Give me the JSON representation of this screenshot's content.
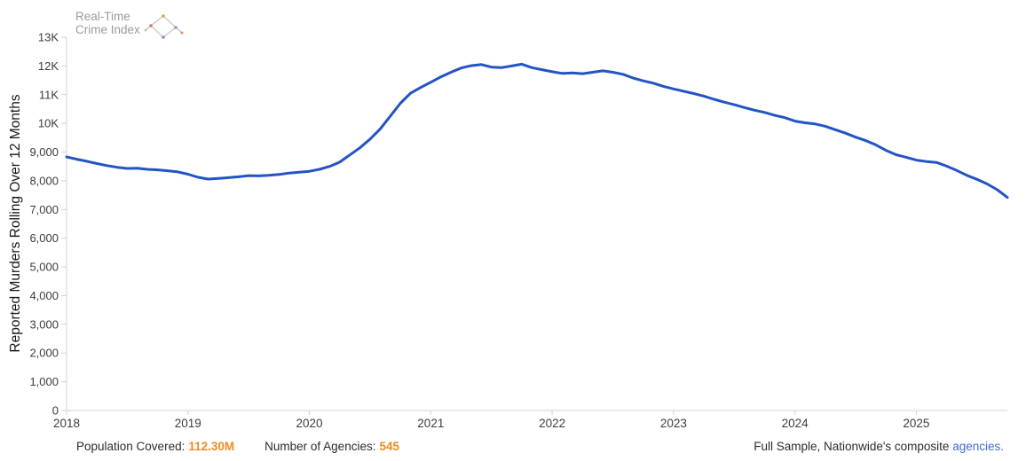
{
  "logo": {
    "line1": "Real-Time",
    "line2": "Crime Index"
  },
  "chart_data": {
    "type": "line",
    "title": "",
    "xlabel": "",
    "ylabel": "Reported Murders Rolling Over 12 Months",
    "ylim": [
      0,
      13000
    ],
    "grid": false,
    "legend_position": "none",
    "line_color": "#2453c6",
    "axis_line_color": "#d2d2d2",
    "y_ticks": [
      {
        "value": 0,
        "label": "0"
      },
      {
        "value": 1000,
        "label": "1,000"
      },
      {
        "value": 2000,
        "label": "2,000"
      },
      {
        "value": 3000,
        "label": "3,000"
      },
      {
        "value": 4000,
        "label": "4,000"
      },
      {
        "value": 5000,
        "label": "5,000"
      },
      {
        "value": 6000,
        "label": "6,000"
      },
      {
        "value": 7000,
        "label": "7,000"
      },
      {
        "value": 8000,
        "label": "8,000"
      },
      {
        "value": 9000,
        "label": "9,000"
      },
      {
        "value": 10000,
        "label": "10K"
      },
      {
        "value": 11000,
        "label": "11K"
      },
      {
        "value": 12000,
        "label": "12K"
      },
      {
        "value": 13000,
        "label": "13K"
      }
    ],
    "x_ticks": [
      "2018",
      "2019",
      "2020",
      "2021",
      "2022",
      "2023",
      "2024",
      "2025"
    ],
    "x_start": "2018-01",
    "x_end": "2025-10",
    "series": [
      {
        "name": "Reported Murders Rolling Over 12 Months",
        "cadence": "monthly",
        "values": [
          8830,
          8750,
          8680,
          8600,
          8530,
          8470,
          8430,
          8440,
          8400,
          8380,
          8350,
          8310,
          8230,
          8120,
          8060,
          8080,
          8110,
          8140,
          8180,
          8170,
          8190,
          8220,
          8270,
          8300,
          8330,
          8400,
          8500,
          8650,
          8900,
          9150,
          9450,
          9800,
          10250,
          10700,
          11050,
          11250,
          11430,
          11620,
          11780,
          11930,
          12010,
          12050,
          11960,
          11940,
          12000,
          12060,
          11940,
          11870,
          11800,
          11740,
          11760,
          11730,
          11780,
          11830,
          11780,
          11710,
          11580,
          11480,
          11400,
          11290,
          11200,
          11120,
          11040,
          10950,
          10840,
          10740,
          10650,
          10550,
          10460,
          10380,
          10280,
          10200,
          10080,
          10020,
          9980,
          9900,
          9780,
          9660,
          9520,
          9400,
          9250,
          9060,
          8910,
          8820,
          8720,
          8670,
          8640,
          8510,
          8360,
          8190,
          8050,
          7890,
          7690,
          7420
        ]
      }
    ]
  },
  "footer": {
    "population_label": "Population Covered:",
    "population_value": "112.30M",
    "agencies_label": "Number of Agencies:",
    "agencies_value": "545",
    "sample_text": "Full Sample, Nationwide's composite ",
    "sample_link": "agencies.",
    "accent_orange": "#ee8b1d",
    "link_blue": "#4169cf"
  }
}
